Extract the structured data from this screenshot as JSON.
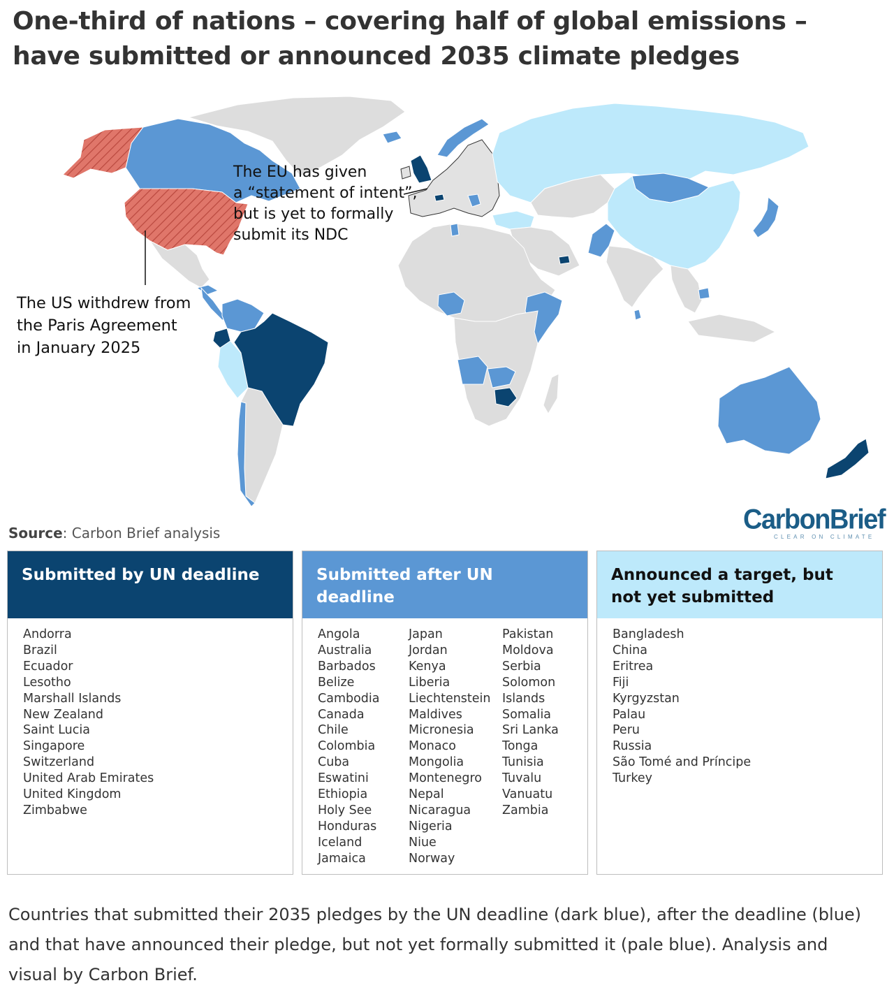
{
  "title": {
    "line1": "One-third of nations – covering half of global emissions –",
    "line2": "have submitted or announced 2035 climate pledges"
  },
  "map": {
    "colors": {
      "submitted_by_deadline": "#0b4470",
      "submitted_after_deadline": "#5b97d4",
      "announced_not_submitted": "#bde9fb",
      "no_pledge": "#dddddd",
      "us_withdrew": "#e0766a",
      "eu_statement": "#e2e2e2"
    },
    "annotations": {
      "eu": [
        "The EU has given",
        "a “statement of intent”,",
        "but is yet to formally",
        "submit its NDC"
      ],
      "us": [
        "The US withdrew from",
        "the Paris Agreement",
        "in January 2025"
      ]
    }
  },
  "source": {
    "label": "Source",
    "text": ": Carbon Brief analysis"
  },
  "logo": {
    "main": "CarbonBrief",
    "sub": "CLEAR ON CLIMATE"
  },
  "categories": [
    {
      "title": "Submitted by UN deadline",
      "header_bg": "#0b4470",
      "header_fg": "#ffffff",
      "columns": [
        [
          "Andorra",
          "Brazil",
          "Ecuador",
          "Lesotho",
          "Marshall Islands",
          "New Zealand",
          "Saint Lucia",
          "Singapore",
          "Switzerland",
          "United Arab Emirates",
          "United Kingdom",
          "Zimbabwe"
        ]
      ]
    },
    {
      "title": "Submitted after UN deadline",
      "header_bg": "#5b97d4",
      "header_fg": "#ffffff",
      "columns": [
        [
          "Angola",
          "Australia",
          "Barbados",
          "Belize",
          "Cambodia",
          "Canada",
          "Chile",
          "Colombia",
          "Cuba",
          "Eswatini",
          "Ethiopia",
          "Holy See",
          "Honduras",
          "Iceland",
          "Jamaica"
        ],
        [
          "Japan",
          "Jordan",
          "Kenya",
          "Liberia",
          "Liechtenstein",
          "Maldives",
          "Micronesia",
          "Monaco",
          "Mongolia",
          "Montenegro",
          "Nepal",
          "Nicaragua",
          "Nigeria",
          "Niue",
          "Norway"
        ],
        [
          "Pakistan",
          "Moldova",
          "Serbia",
          "Solomon",
          "Islands",
          "Somalia",
          "Sri Lanka",
          "Tonga",
          "Tunisia",
          "Tuvalu",
          "Vanuatu",
          "Zambia"
        ]
      ]
    },
    {
      "title": "Announced a target, but not yet submitted",
      "header_bg": "#bde9fb",
      "header_fg": "#111111",
      "columns": [
        [
          "Bangladesh",
          "China",
          "Eritrea",
          "Fiji",
          "Kyrgyzstan",
          "Palau",
          "Peru",
          "Russia",
          "São Tomé and Príncipe",
          "Turkey"
        ]
      ]
    }
  ],
  "caption": "Countries that submitted their 2035 pledges by the UN deadline (dark blue), after the deadline (blue) and that have announced their pledge, but not yet formally submitted it (pale blue). Analysis and visual by Carbon Brief."
}
